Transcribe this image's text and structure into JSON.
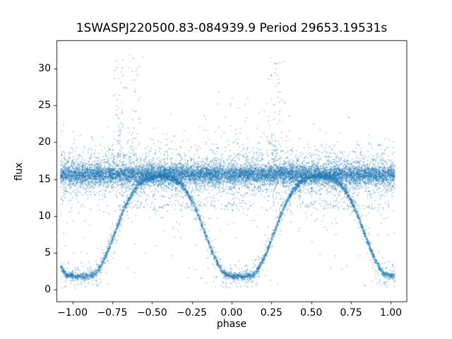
{
  "figure": {
    "background": "#ffffff"
  },
  "chart_data": {
    "type": "scatter",
    "title": "1SWASPJ220500.83-084939.9 Period 29653.19531s",
    "xlabel": "phase",
    "ylabel": "flux",
    "xlim": [
      -1.1,
      1.1
    ],
    "ylim": [
      -1.65,
      33.8
    ],
    "grid": false,
    "legend": null,
    "frame_color": "#000000",
    "marker_color": "#1f77b4",
    "marker_alpha": 0.5,
    "marker_size_px": 1.5,
    "seed": 7,
    "phase_min": -1.075,
    "phase_max": 1.025,
    "xticks": [
      {
        "v": -1.0,
        "label": "−1.00"
      },
      {
        "v": -0.75,
        "label": "−0.75"
      },
      {
        "v": -0.5,
        "label": "−0.50"
      },
      {
        "v": -0.25,
        "label": "−0.25"
      },
      {
        "v": 0.0,
        "label": "0.00"
      },
      {
        "v": 0.25,
        "label": "0.25"
      },
      {
        "v": 0.5,
        "label": "0.50"
      },
      {
        "v": 0.75,
        "label": "0.75"
      },
      {
        "v": 1.0,
        "label": "1.00"
      }
    ],
    "yticks": [
      {
        "v": 0,
        "label": "0"
      },
      {
        "v": 5,
        "label": "5"
      },
      {
        "v": 10,
        "label": "10"
      },
      {
        "v": 15,
        "label": "15"
      },
      {
        "v": 20,
        "label": "20"
      },
      {
        "v": 25,
        "label": "25"
      },
      {
        "v": 30,
        "label": "30"
      }
    ],
    "series": [
      {
        "name": "constant-flux-band",
        "kind": "gaussian_band",
        "n": 11000,
        "flux_mean": 15.65,
        "sigma_core": 0.6,
        "sigma_wide": 1.5,
        "wide_frac": 0.28
      },
      {
        "name": "band-upper-tail-outliers",
        "kind": "exp_tail_up",
        "n": 380,
        "flux_base": 17.0,
        "exp_mean": 1.7,
        "flux_max": 32.4
      },
      {
        "name": "outlier-plumes",
        "kind": "clusters",
        "clusters": [
          {
            "phase": -0.71,
            "n": 55,
            "flux_min": 18.0,
            "flux_max": 31.5,
            "phase_spread": 0.02
          },
          {
            "phase": -0.61,
            "n": 40,
            "flux_min": 18.0,
            "flux_max": 32.3,
            "phase_spread": 0.025
          },
          {
            "phase": 0.28,
            "n": 65,
            "flux_min": 18.0,
            "flux_max": 31.6,
            "phase_spread": 0.03
          },
          {
            "phase": 0.05,
            "n": 22,
            "flux_min": 18.0,
            "flux_max": 28.0,
            "phase_spread": 0.04
          }
        ]
      },
      {
        "name": "band-lower-tail-outliers",
        "kind": "exp_tail_down",
        "n": 480,
        "flux_base": 14.6,
        "exp_mean": 2.8,
        "flux_min": 2.3
      },
      {
        "name": "eclipsing-binary-folded-curve",
        "kind": "folded_curve",
        "n": 4600,
        "sigma": 0.22,
        "fuzz_frac": 0.18,
        "fuzz_sigma": 0.9,
        "min_centers": [
          -0.95,
          0.05,
          1.05
        ],
        "profile_offset": [
          0.0,
          0.05,
          0.09,
          0.12,
          0.15,
          0.18,
          0.21,
          0.24,
          0.27,
          0.3,
          0.33,
          0.36,
          0.39,
          0.43,
          0.47,
          0.5
        ],
        "profile_flux": [
          1.82,
          1.85,
          2.0,
          2.9,
          4.1,
          5.6,
          7.3,
          9.0,
          10.7,
          12.1,
          13.2,
          14.1,
          14.7,
          15.1,
          15.35,
          15.45
        ]
      },
      {
        "name": "faint-secondary-stripe",
        "kind": "gaussian_band",
        "n": 170,
        "phase_min": -0.78,
        "phase_max": 1.0,
        "flux_mean": 11.3,
        "sigma_core": 0.28,
        "sigma_wide": 0.28,
        "wide_frac": 0
      },
      {
        "name": "deep-low-outliers",
        "kind": "low_scatter",
        "n": 70,
        "centers": [
          -0.95,
          0.05,
          1.05
        ],
        "weights": [
          0.3,
          0.45,
          0.25
        ],
        "phase_sigma": 0.13,
        "flux_min": 0.3,
        "flux_max": 2.0
      }
    ]
  }
}
